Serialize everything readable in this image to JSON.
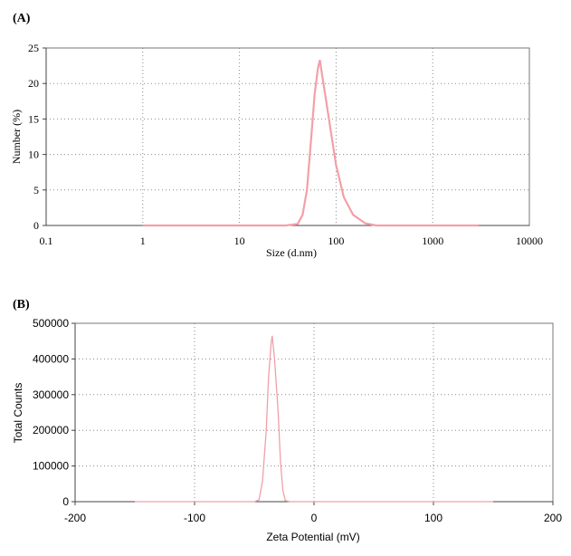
{
  "chart_data": [
    {
      "panel_label": "(A)",
      "type": "line",
      "xlabel": "Size (d.nm)",
      "ylabel": "Number (%)",
      "x_scale": "log",
      "xlim": [
        0.1,
        10000
      ],
      "ylim": [
        0,
        25
      ],
      "x_ticks": [
        "0.1",
        "1",
        "10",
        "100",
        "1000",
        "10000"
      ],
      "y_ticks": [
        "0",
        "5",
        "10",
        "15",
        "20",
        "25"
      ],
      "grid": true,
      "line_color": "#f2a0a8",
      "series": [
        {
          "x": [
            1,
            10,
            30,
            40,
            45,
            50,
            55,
            60,
            65,
            68,
            72,
            80,
            90,
            100,
            120,
            150,
            200,
            260,
            300,
            3000
          ],
          "y": [
            0,
            0,
            0,
            0.2,
            1.5,
            5,
            12,
            18.5,
            22.2,
            23.3,
            21,
            17,
            12.5,
            8.5,
            4,
            1.5,
            0.3,
            0,
            0,
            0
          ]
        }
      ]
    },
    {
      "panel_label": "(B)",
      "type": "line",
      "xlabel": "Zeta Potential (mV)",
      "ylabel": "Total Counts",
      "xlim": [
        -200,
        200
      ],
      "ylim": [
        0,
        500000
      ],
      "x_ticks": [
        "-200",
        "-100",
        "0",
        "100",
        "200"
      ],
      "y_ticks": [
        "0",
        "100000",
        "200000",
        "300000",
        "400000",
        "500000"
      ],
      "grid": true,
      "line_color": "#f0a0a8",
      "series": [
        {
          "x": [
            -150,
            -50,
            -46,
            -43,
            -40,
            -38,
            -36,
            -35,
            -33,
            -30,
            -28,
            -26,
            -24,
            -20,
            150
          ],
          "y": [
            0,
            0,
            5000,
            60000,
            200000,
            350000,
            440000,
            465000,
            400000,
            250000,
            110000,
            30000,
            3000,
            0,
            0
          ]
        }
      ]
    }
  ]
}
